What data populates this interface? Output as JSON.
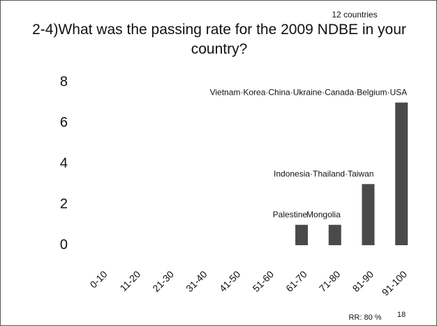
{
  "chart_data": {
    "type": "bar",
    "title": "2-4)What was the passing rate for the 2009 NDBE in your country?",
    "annotations": [
      "12 countries",
      "RR: 80 %",
      "18"
    ],
    "categories": [
      "0-10",
      "11-20",
      "21-30",
      "31-40",
      "41-50",
      "51-60",
      "61-70",
      "71-80",
      "81-90",
      "91-100"
    ],
    "values": [
      0,
      0,
      0,
      0,
      0,
      0,
      1,
      1,
      3,
      7
    ],
    "bar_labels": [
      null,
      null,
      null,
      null,
      null,
      null,
      "Palestine",
      "Mongolia",
      "Indonesia·Thailand·Taiwan",
      "Vietnam·Korea·China·Ukraine·Canada·Belgium·USA"
    ],
    "color": "#4a4a4a",
    "ylim": [
      0,
      8
    ],
    "yticks": [
      0,
      2,
      4,
      6,
      8
    ],
    "grid": false
  }
}
